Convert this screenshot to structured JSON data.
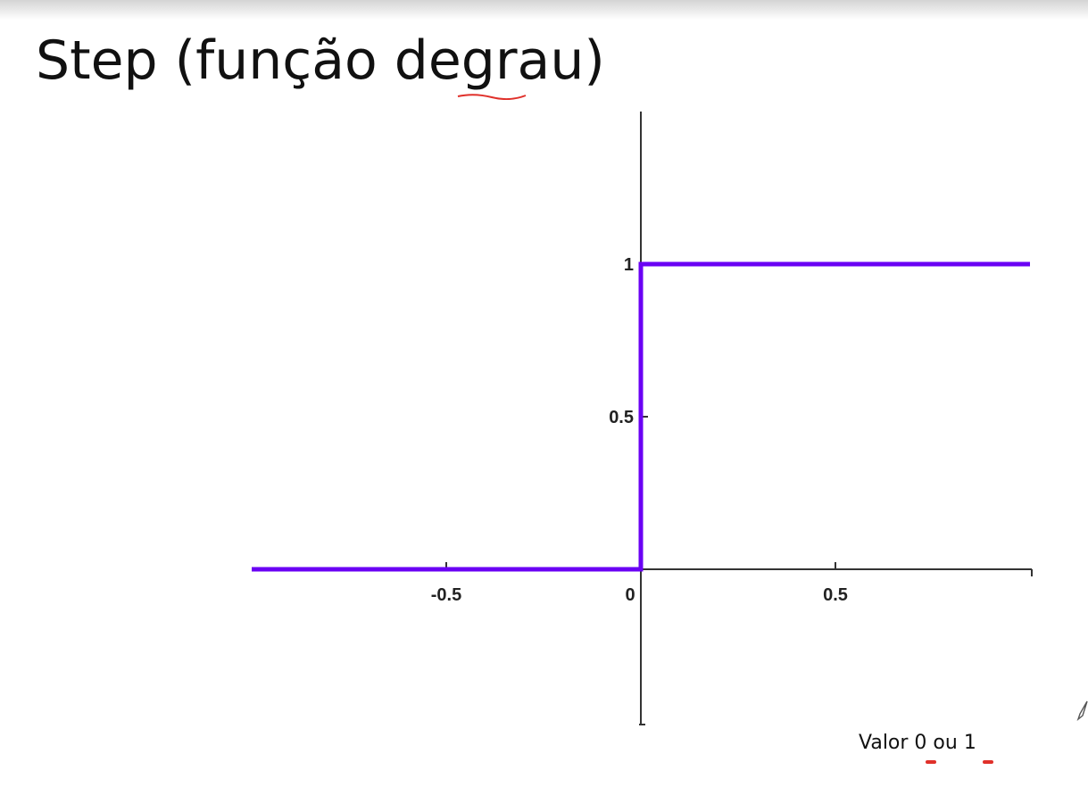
{
  "slide": {
    "title": "Step (função degrau)",
    "caption": "Valor 0 ou 1"
  },
  "colors": {
    "series": "#6a00f4",
    "axis": "#333333",
    "annotation": "#e0302a"
  },
  "icons": {
    "pen_cursor": "pen-cursor-icon"
  },
  "chart_data": {
    "type": "line",
    "title": "",
    "xlabel": "",
    "ylabel": "",
    "xlim": [
      -1,
      1
    ],
    "ylim": [
      -0.5,
      1.5
    ],
    "xticks": [
      {
        "value": -0.5,
        "label": "-0.5"
      },
      {
        "value": 0,
        "label": "0"
      },
      {
        "value": 0.5,
        "label": "0.5"
      }
    ],
    "yticks": [
      {
        "value": 0.5,
        "label": "0.5"
      },
      {
        "value": 1,
        "label": "1"
      }
    ],
    "grid": false,
    "legend": "none",
    "series": [
      {
        "points": [
          [
            -1,
            0
          ],
          [
            0,
            0
          ],
          [
            0,
            1
          ],
          [
            1,
            1
          ]
        ]
      }
    ]
  }
}
